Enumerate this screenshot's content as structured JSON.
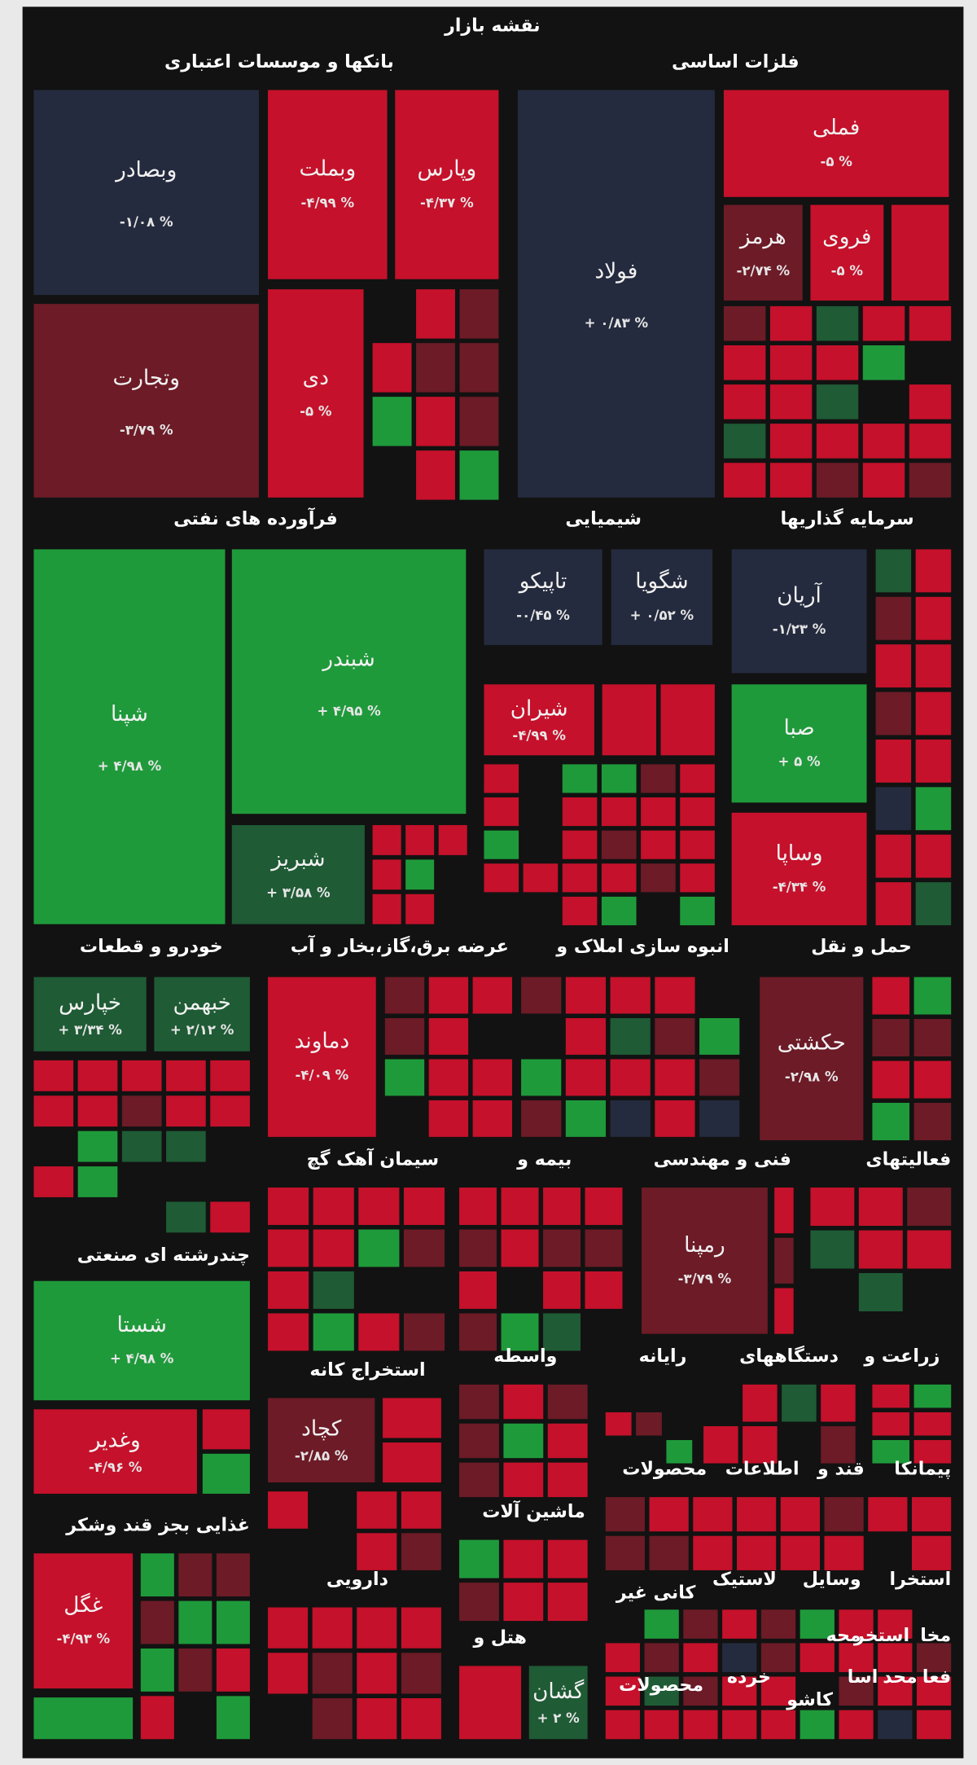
{
  "header": {
    "title": "نقشه بازار"
  },
  "sectors": [
    {
      "name": "بانکها و موسسات اعتباری",
      "tiles": [
        {
          "symbol": "وبصادر",
          "change": "-۱/۰۸ %",
          "color": "#252b3e"
        },
        {
          "symbol": "وتجارت",
          "change": "-۳/۷۹ %",
          "color": "#6c1b27"
        },
        {
          "symbol": "وبملت",
          "change": "-۴/۹۹ %",
          "color": "#c5112b"
        },
        {
          "symbol": "وپارس",
          "change": "-۴/۳۷ %",
          "color": "#c5112b"
        },
        {
          "symbol": "دی",
          "change": "-۵ %",
          "color": "#c5112b"
        }
      ]
    },
    {
      "name": "فلزات اساسی",
      "tiles": [
        {
          "symbol": "فولاد",
          "change": "+ ۰/۸۳ %",
          "color": "#252b3e"
        },
        {
          "symbol": "فملی",
          "change": "-۵ %",
          "color": "#c5112b"
        },
        {
          "symbol": "هرمز",
          "change": "-۲/۷۴ %",
          "color": "#6c1b27"
        },
        {
          "symbol": "فروی",
          "change": "-۵ %",
          "color": "#c5112b"
        }
      ]
    },
    {
      "name": "فرآورده های نفتی",
      "tiles": [
        {
          "symbol": "شپنا",
          "change": "+ ۴/۹۸ %",
          "color": "#1f9a3b"
        },
        {
          "symbol": "شبندر",
          "change": "+ ۴/۹۵ %",
          "color": "#1f9a3b"
        },
        {
          "symbol": "شبریز",
          "change": "+ ۳/۵۸ %",
          "color": "#1f5b35"
        }
      ]
    },
    {
      "name": "شیمیایی",
      "tiles": [
        {
          "symbol": "تاپیکو",
          "change": "-۰/۴۵ %",
          "color": "#252b3e"
        },
        {
          "symbol": "شگویا",
          "change": "+ ۰/۵۲ %",
          "color": "#252b3e"
        },
        {
          "symbol": "شیران",
          "change": "-۴/۹۹ %",
          "color": "#c5112b"
        }
      ]
    },
    {
      "name": "سرمایه گذاریها",
      "tiles": [
        {
          "symbol": "آریان",
          "change": "-۱/۲۳ %",
          "color": "#252b3e"
        },
        {
          "symbol": "صبا",
          "change": "+ ۵ %",
          "color": "#1f9a3b"
        },
        {
          "symbol": "وساپا",
          "change": "-۴/۳۴ %",
          "color": "#c5112b"
        }
      ]
    },
    {
      "name": "خودرو و قطعات",
      "tiles": [
        {
          "symbol": "خپارس",
          "change": "+ ۳/۳۴ %",
          "color": "#1f5b35"
        },
        {
          "symbol": "خبهمن",
          "change": "+ ۲/۱۲ %",
          "color": "#1f5b35"
        }
      ]
    },
    {
      "name": "عرضه برق،گاز،بخار و آب",
      "tiles": [
        {
          "symbol": "دماوند",
          "change": "-۴/۰۹ %",
          "color": "#c5112b"
        }
      ]
    },
    {
      "name": "انبوه سازی املاک و",
      "tiles": []
    },
    {
      "name": "حمل و نقل",
      "tiles": [
        {
          "symbol": "حکشتی",
          "change": "-۲/۹۸ %",
          "color": "#6c1b27"
        }
      ]
    },
    {
      "name": "سیمان آهک گچ",
      "tiles": []
    },
    {
      "name": "بیمه و",
      "tiles": []
    },
    {
      "name": "فنی و مهندسی",
      "tiles": [
        {
          "symbol": "رمپنا",
          "change": "-۳/۷۹ %",
          "color": "#6c1b27"
        }
      ]
    },
    {
      "name": "فعالیتهای",
      "tiles": []
    },
    {
      "name": "چندرشته ای صنعتی",
      "tiles": [
        {
          "symbol": "شستا",
          "change": "+ ۴/۹۸ %",
          "color": "#1f9a3b"
        },
        {
          "symbol": "وغدیر",
          "change": "-۴/۹۶ %",
          "color": "#c5112b"
        }
      ]
    },
    {
      "name": "استخراج کانه",
      "tiles": [
        {
          "symbol": "کچاد",
          "change": "-۲/۸۵ %",
          "color": "#6c1b27"
        }
      ]
    },
    {
      "name": "واسطه",
      "tiles": []
    },
    {
      "name": "رایانه",
      "tiles": []
    },
    {
      "name": "دستگاههای",
      "tiles": []
    },
    {
      "name": "زراعت و",
      "tiles": []
    },
    {
      "name": "غذایی بجز قند وشکر",
      "tiles": [
        {
          "symbol": "غگل",
          "change": "-۴/۹۳ %",
          "color": "#c5112b"
        }
      ]
    },
    {
      "name": "محصولات",
      "tiles": []
    },
    {
      "name": "اطلاعات",
      "tiles": []
    },
    {
      "name": "قند و",
      "tiles": []
    },
    {
      "name": "پیمانکا",
      "tiles": []
    },
    {
      "name": "ماشین آلات",
      "tiles": []
    },
    {
      "name": "دارویی",
      "tiles": []
    },
    {
      "name": "کانی غیر",
      "tiles": []
    },
    {
      "name": "لاستیک",
      "tiles": []
    },
    {
      "name": "وسایل",
      "tiles": []
    },
    {
      "name": "استخرا",
      "tiles": []
    },
    {
      "name": "هتل و",
      "tiles": [
        {
          "symbol": "گشان",
          "change": "+ ۲ %",
          "color": "#1f5b35"
        }
      ]
    },
    {
      "name": "مخا",
      "tiles": []
    },
    {
      "name": "استخر",
      "tiles": []
    },
    {
      "name": "محه",
      "tiles": []
    },
    {
      "name": "خرده",
      "tiles": []
    },
    {
      "name": "محصولات",
      "tiles": []
    },
    {
      "name": "فعا",
      "tiles": []
    },
    {
      "name": "محد",
      "tiles": []
    },
    {
      "name": "اسا",
      "tiles": []
    },
    {
      "name": "کاشو",
      "tiles": []
    }
  ]
}
